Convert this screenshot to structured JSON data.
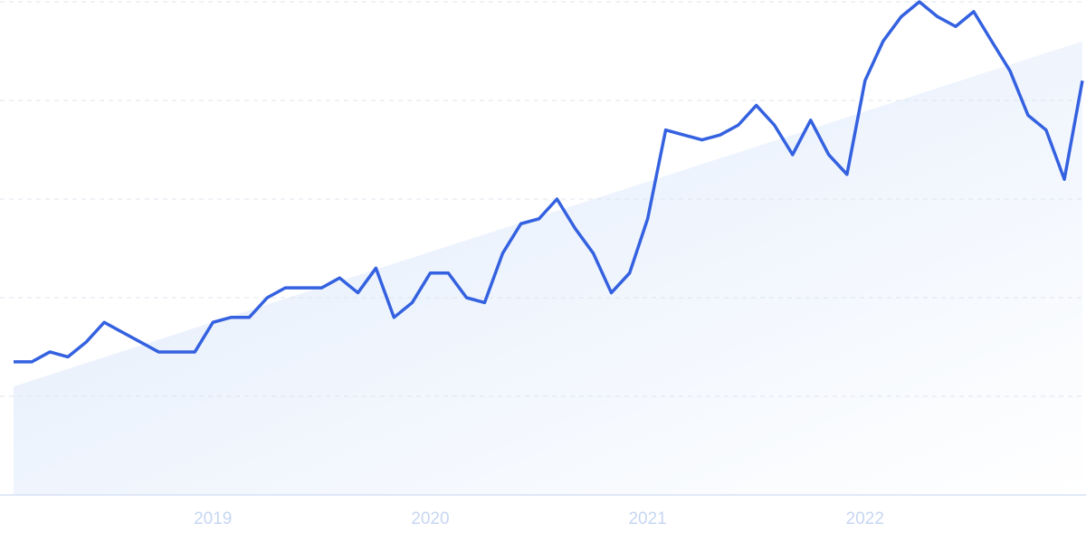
{
  "chart_data": {
    "type": "line",
    "x": [
      2018.083,
      2018.167,
      2018.25,
      2018.333,
      2018.417,
      2018.5,
      2018.583,
      2018.667,
      2018.75,
      2018.833,
      2018.917,
      2019.0,
      2019.083,
      2019.167,
      2019.25,
      2019.333,
      2019.417,
      2019.5,
      2019.583,
      2019.667,
      2019.75,
      2019.833,
      2019.917,
      2020.0,
      2020.083,
      2020.167,
      2020.25,
      2020.333,
      2020.417,
      2020.5,
      2020.583,
      2020.667,
      2020.75,
      2020.833,
      2020.917,
      2021.0,
      2021.083,
      2021.167,
      2021.25,
      2021.333,
      2021.417,
      2021.5,
      2021.583,
      2021.667,
      2021.75,
      2021.833,
      2021.917,
      2022.0,
      2022.083,
      2022.167,
      2022.25,
      2022.333,
      2022.417,
      2022.5,
      2022.583,
      2022.667,
      2022.75,
      2022.833,
      2022.917,
      2023.0
    ],
    "series": [
      {
        "color": "#3461e0",
        "values": [
          27,
          27,
          29,
          28,
          31,
          35,
          33,
          31,
          29,
          29,
          29,
          35,
          36,
          36,
          40,
          42,
          42,
          42,
          44,
          41,
          46,
          36,
          39,
          45,
          45,
          40,
          39,
          49,
          55,
          56,
          60,
          54,
          49,
          41,
          45,
          56,
          74,
          73,
          72,
          73,
          75,
          79,
          75,
          69,
          76,
          69,
          65,
          84,
          92,
          97,
          100,
          97,
          95,
          98,
          92,
          86,
          77,
          74,
          64,
          84
        ]
      }
    ],
    "trend": {
      "x": [
        2018.083,
        2023.0
      ],
      "values": [
        22,
        92
      ]
    },
    "xlim": [
      2018.083,
      2023.0
    ],
    "xticks": [
      2019,
      2020,
      2021,
      2022
    ],
    "ylim": [
      0,
      100
    ],
    "yticks": [
      20,
      40,
      60,
      80,
      100
    ],
    "grid": true
  }
}
